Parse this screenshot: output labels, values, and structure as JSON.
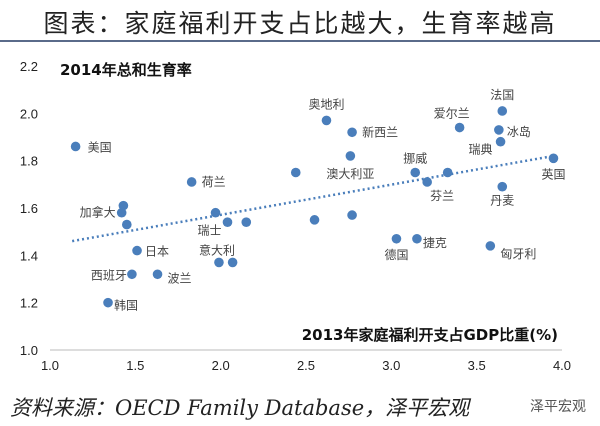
{
  "title": "图表：家庭福利开支占比越大，生育率越高",
  "source": "资料来源：OECD Family Database，泽平宏观",
  "watermark": "泽平宏观",
  "chart_data": {
    "type": "scatter",
    "ylabel": "2014年总和生育率",
    "xlabel": "2013年家庭福利开支占GDP比重(%)",
    "xlim": [
      1.0,
      4.0
    ],
    "ylim": [
      1.0,
      2.2
    ],
    "xticks": [
      "1.0",
      "1.5",
      "2.0",
      "2.5",
      "3.0",
      "3.5",
      "4.0"
    ],
    "yticks": [
      "1.0",
      "1.2",
      "1.4",
      "1.6",
      "1.8",
      "2.0",
      "2.2"
    ],
    "grid": false,
    "color": "#4a7ebb",
    "trendline": {
      "style": "dotted",
      "x": [
        1.13,
        3.95
      ],
      "y": [
        1.46,
        1.82
      ]
    },
    "points": [
      {
        "label": "美国",
        "x": 1.15,
        "y": 1.86
      },
      {
        "label": "奥地利",
        "x": 2.62,
        "y": 1.97
      },
      {
        "label": "新西兰",
        "x": 2.77,
        "y": 1.92
      },
      {
        "label": "澳大利亚",
        "x": 2.76,
        "y": 1.82
      },
      {
        "label": "",
        "x": 2.44,
        "y": 1.75
      },
      {
        "label": "荷兰",
        "x": 1.83,
        "y": 1.71
      },
      {
        "label": "加拿大",
        "x": 1.42,
        "y": 1.58
      },
      {
        "label": "",
        "x": 1.43,
        "y": 1.61
      },
      {
        "label": "",
        "x": 1.45,
        "y": 1.53
      },
      {
        "label": "瑞士",
        "x": 1.97,
        "y": 1.58
      },
      {
        "label": "",
        "x": 2.04,
        "y": 1.54
      },
      {
        "label": "",
        "x": 2.15,
        "y": 1.54
      },
      {
        "label": "",
        "x": 2.55,
        "y": 1.55
      },
      {
        "label": "",
        "x": 2.77,
        "y": 1.57
      },
      {
        "label": "日本",
        "x": 1.51,
        "y": 1.42
      },
      {
        "label": "意大利",
        "x": 1.99,
        "y": 1.37
      },
      {
        "label": "",
        "x": 2.07,
        "y": 1.37
      },
      {
        "label": "西班牙",
        "x": 1.48,
        "y": 1.32
      },
      {
        "label": "波兰",
        "x": 1.63,
        "y": 1.32
      },
      {
        "label": "韩国",
        "x": 1.34,
        "y": 1.2
      },
      {
        "label": "法国",
        "x": 3.65,
        "y": 2.01
      },
      {
        "label": "爱尔兰",
        "x": 3.4,
        "y": 1.94
      },
      {
        "label": "冰岛",
        "x": 3.63,
        "y": 1.93
      },
      {
        "label": "瑞典",
        "x": 3.64,
        "y": 1.88
      },
      {
        "label": "英国",
        "x": 3.95,
        "y": 1.81
      },
      {
        "label": "挪威",
        "x": 3.14,
        "y": 1.75
      },
      {
        "label": "芬兰",
        "x": 3.21,
        "y": 1.71
      },
      {
        "label": "",
        "x": 3.33,
        "y": 1.75
      },
      {
        "label": "丹麦",
        "x": 3.65,
        "y": 1.69
      },
      {
        "label": "德国",
        "x": 3.03,
        "y": 1.47
      },
      {
        "label": "捷克",
        "x": 3.15,
        "y": 1.47
      },
      {
        "label": "匈牙利",
        "x": 3.58,
        "y": 1.44
      }
    ]
  }
}
